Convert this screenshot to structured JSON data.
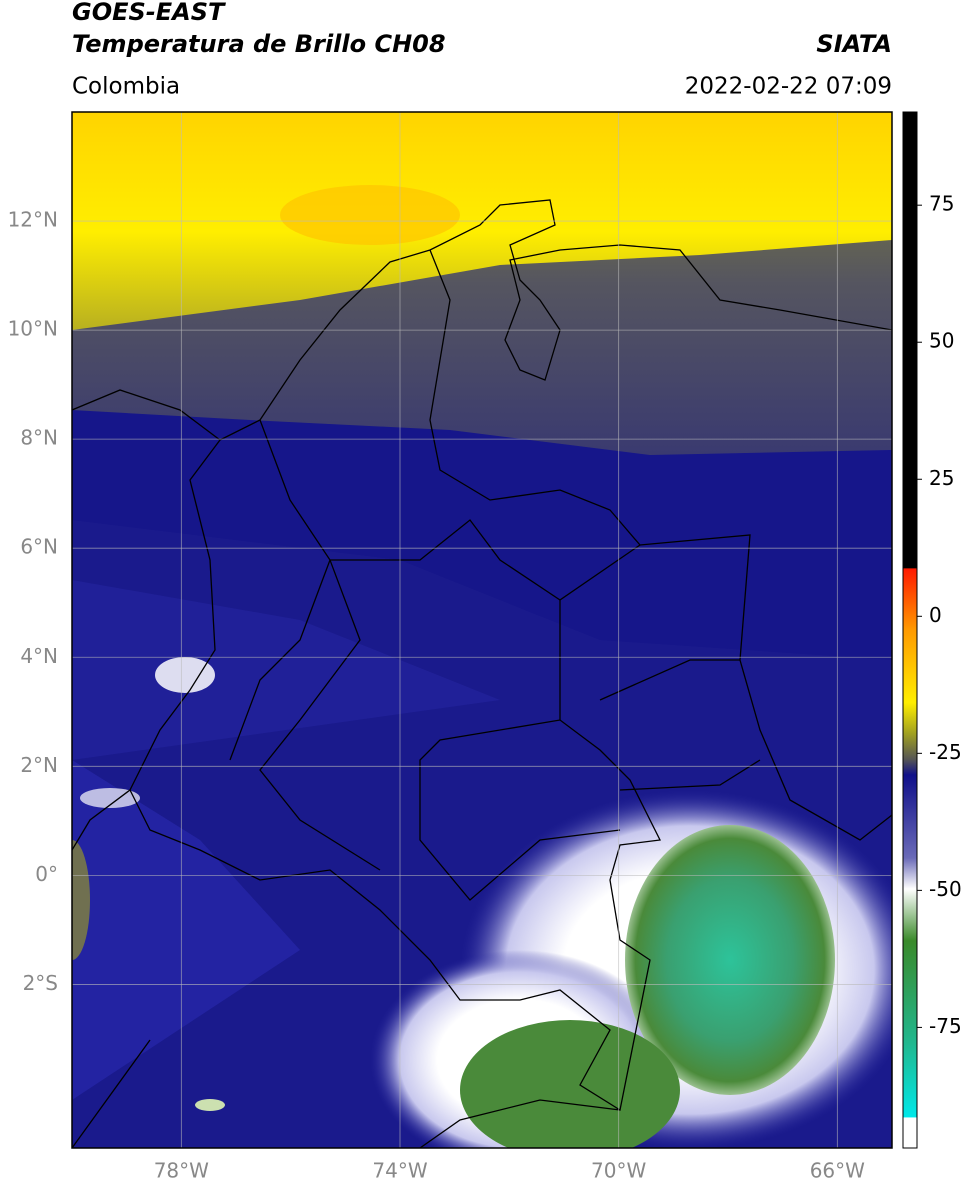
{
  "header": {
    "title_lines": [
      "GOES-EAST",
      "Temperatura de Brillo CH08"
    ],
    "source": "SIATA",
    "region": "Colombia",
    "timestamp": "2022-02-22 07:09"
  },
  "map": {
    "lonlim": [
      -80,
      -65
    ],
    "latlim": [
      -5,
      14
    ],
    "lat_ticks": [
      {
        "value": 12,
        "label": "12°N"
      },
      {
        "value": 10,
        "label": "10°N"
      },
      {
        "value": 8,
        "label": "8°N"
      },
      {
        "value": 6,
        "label": "6°N"
      },
      {
        "value": 4,
        "label": "4°N"
      },
      {
        "value": 2,
        "label": "2°N"
      },
      {
        "value": 0,
        "label": "0°"
      },
      {
        "value": -2,
        "label": "2°S"
      }
    ],
    "lon_ticks": [
      {
        "value": -78,
        "label": "78°W"
      },
      {
        "value": -74,
        "label": "74°W"
      },
      {
        "value": -70,
        "label": "70°W"
      },
      {
        "value": -66,
        "label": "66°W"
      }
    ]
  },
  "colorbar": {
    "lim": [
      -97,
      92
    ],
    "ticks": [
      75,
      50,
      25,
      0,
      -25,
      -50,
      -75
    ]
  }
}
